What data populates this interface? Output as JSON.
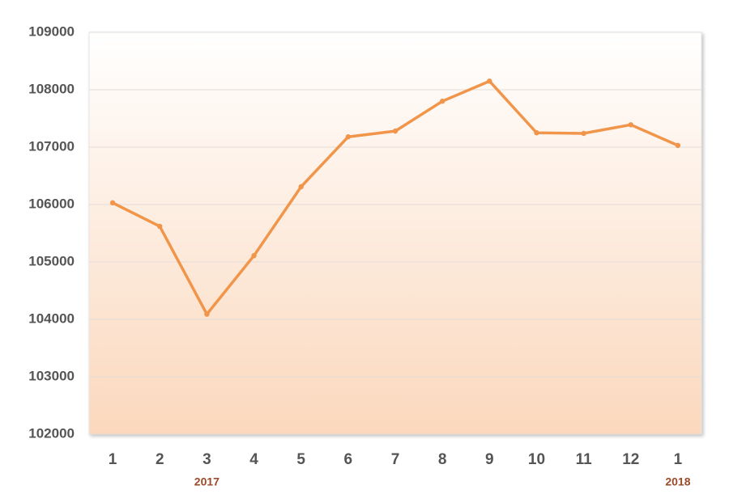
{
  "chart_data": {
    "type": "line",
    "categories": [
      "1",
      "2",
      "3",
      "4",
      "5",
      "6",
      "7",
      "8",
      "9",
      "10",
      "11",
      "12",
      "1"
    ],
    "year_labels": [
      null,
      null,
      "2017",
      null,
      null,
      null,
      null,
      null,
      null,
      null,
      null,
      null,
      "2018"
    ],
    "series": [
      {
        "color": "#f0954a",
        "values": [
          106030,
          105620,
          104090,
          105110,
          106310,
          107180,
          107280,
          107800,
          108150,
          107250,
          107240,
          107390,
          107030
        ]
      }
    ],
    "ylim": [
      102000,
      109000
    ],
    "yticks": [
      102000,
      103000,
      104000,
      105000,
      106000,
      107000,
      108000,
      109000
    ],
    "grid": true
  }
}
